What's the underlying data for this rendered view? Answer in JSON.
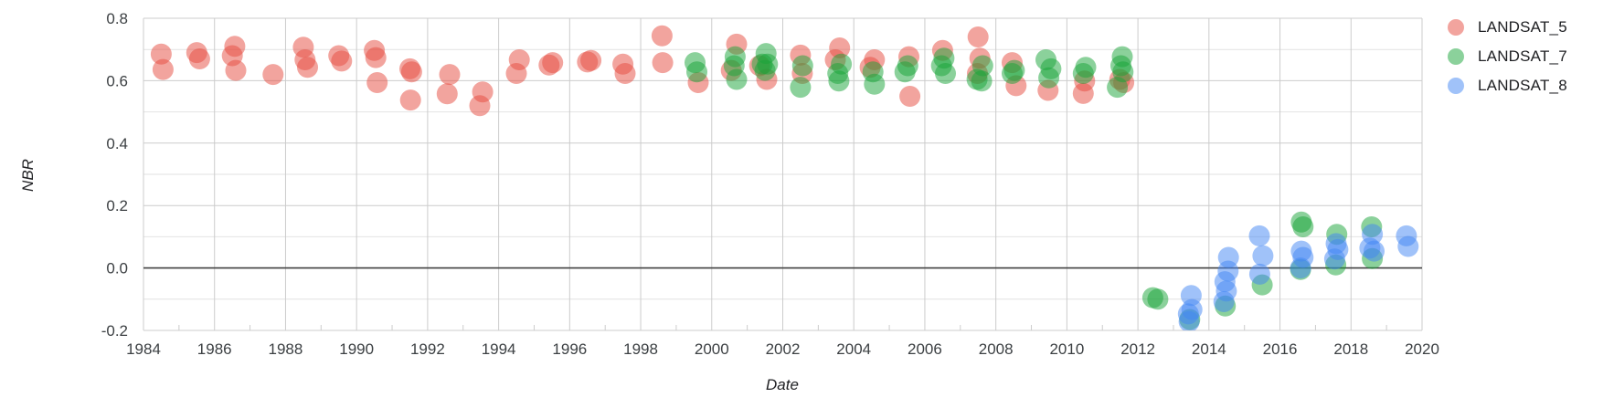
{
  "page": {
    "background": "#ffffff"
  },
  "colors": {
    "gridline": "#cccccc",
    "minor_gridline": "#e2e2e2",
    "baseline": "#424242",
    "tick_label": "#3c4043",
    "axis_title": "#202124"
  },
  "chart_data": {
    "type": "scatter",
    "title": "",
    "xlabel": "Date",
    "ylabel": "NBR",
    "xlim": [
      1984,
      2020
    ],
    "ylim": [
      -0.2,
      0.8
    ],
    "grid": true,
    "legend_position": "right",
    "x_ticks": [
      {
        "value": 1984,
        "label": "1984"
      },
      {
        "value": 1986,
        "label": "1986"
      },
      {
        "value": 1988,
        "label": "1988"
      },
      {
        "value": 1990,
        "label": "1990"
      },
      {
        "value": 1992,
        "label": "1992"
      },
      {
        "value": 1994,
        "label": "1994"
      },
      {
        "value": 1996,
        "label": "1996"
      },
      {
        "value": 1998,
        "label": "1998"
      },
      {
        "value": 2000,
        "label": "2000"
      },
      {
        "value": 2002,
        "label": "2002"
      },
      {
        "value": 2004,
        "label": "2004"
      },
      {
        "value": 2006,
        "label": "2006"
      },
      {
        "value": 2008,
        "label": "2008"
      },
      {
        "value": 2010,
        "label": "2010"
      },
      {
        "value": 2012,
        "label": "2012"
      },
      {
        "value": 2014,
        "label": "2014"
      },
      {
        "value": 2016,
        "label": "2016"
      },
      {
        "value": 2018,
        "label": "2018"
      },
      {
        "value": 2020,
        "label": "2020"
      }
    ],
    "x_minor_ticks": [
      1985,
      1987,
      1989,
      1991,
      1993,
      1995,
      1997,
      1999,
      2001,
      2003,
      2005,
      2007,
      2009,
      2011,
      2013,
      2015,
      2017,
      2019
    ],
    "y_ticks": [
      {
        "value": 0.8,
        "label": "0.8"
      },
      {
        "value": 0.6,
        "label": "0.6"
      },
      {
        "value": 0.4,
        "label": "0.4"
      },
      {
        "value": 0.2,
        "label": "0.2"
      },
      {
        "value": 0.0,
        "label": "0.0"
      },
      {
        "value": -0.2,
        "label": "-0.2"
      }
    ],
    "y_minor_ticks": [
      0.7,
      0.5,
      0.3,
      0.1,
      -0.1
    ],
    "baseline_value": 0.0,
    "series": [
      {
        "name": "LANDSAT_5",
        "color": "#db4437",
        "fill": "rgba(230,74,61,0.5)",
        "points": [
          [
            1984.5,
            0.685
          ],
          [
            1984.55,
            0.636
          ],
          [
            1985.5,
            0.69
          ],
          [
            1985.58,
            0.67
          ],
          [
            1986.5,
            0.68
          ],
          [
            1986.57,
            0.71
          ],
          [
            1986.6,
            0.633
          ],
          [
            1987.65,
            0.62
          ],
          [
            1988.5,
            0.707
          ],
          [
            1988.55,
            0.667
          ],
          [
            1988.62,
            0.643
          ],
          [
            1989.5,
            0.68
          ],
          [
            1989.58,
            0.663
          ],
          [
            1990.5,
            0.697
          ],
          [
            1990.54,
            0.674
          ],
          [
            1990.58,
            0.594
          ],
          [
            1991.5,
            0.638
          ],
          [
            1991.55,
            0.628
          ],
          [
            1991.52,
            0.538
          ],
          [
            1992.55,
            0.558
          ],
          [
            1992.62,
            0.62
          ],
          [
            1993.47,
            0.52
          ],
          [
            1993.55,
            0.564
          ],
          [
            1994.5,
            0.623
          ],
          [
            1994.58,
            0.667
          ],
          [
            1995.42,
            0.65
          ],
          [
            1995.52,
            0.658
          ],
          [
            1996.5,
            0.66
          ],
          [
            1996.6,
            0.665
          ],
          [
            1997.5,
            0.653
          ],
          [
            1997.56,
            0.623
          ],
          [
            1998.6,
            0.744
          ],
          [
            1998.62,
            0.658
          ],
          [
            1999.62,
            0.594
          ],
          [
            2000.55,
            0.633
          ],
          [
            2000.7,
            0.717
          ],
          [
            2001.35,
            0.648
          ],
          [
            2001.55,
            0.604
          ],
          [
            2002.5,
            0.682
          ],
          [
            2002.55,
            0.623
          ],
          [
            2003.48,
            0.667
          ],
          [
            2003.6,
            0.705
          ],
          [
            2004.46,
            0.643
          ],
          [
            2004.58,
            0.667
          ],
          [
            2005.55,
            0.677
          ],
          [
            2005.58,
            0.55
          ],
          [
            2006.5,
            0.697
          ],
          [
            2007.5,
            0.74
          ],
          [
            2007.55,
            0.672
          ],
          [
            2007.48,
            0.623
          ],
          [
            2008.46,
            0.658
          ],
          [
            2008.57,
            0.584
          ],
          [
            2009.47,
            0.569
          ],
          [
            2010.46,
            0.559
          ],
          [
            2010.5,
            0.599
          ],
          [
            2011.49,
            0.604
          ],
          [
            2011.6,
            0.594
          ]
        ]
      },
      {
        "name": "LANDSAT_7",
        "color": "#18a437",
        "fill": "rgba(24,164,55,0.5)",
        "points": [
          [
            1999.53,
            0.658
          ],
          [
            1999.58,
            0.628
          ],
          [
            2000.66,
            0.677
          ],
          [
            2000.63,
            0.648
          ],
          [
            2000.7,
            0.604
          ],
          [
            2001.42,
            0.653
          ],
          [
            2001.53,
            0.687
          ],
          [
            2001.57,
            0.653
          ],
          [
            2001.5,
            0.633
          ],
          [
            2002.56,
            0.648
          ],
          [
            2002.5,
            0.579
          ],
          [
            2003.65,
            0.653
          ],
          [
            2003.55,
            0.623
          ],
          [
            2003.58,
            0.599
          ],
          [
            2004.54,
            0.628
          ],
          [
            2004.58,
            0.589
          ],
          [
            2005.52,
            0.648
          ],
          [
            2005.44,
            0.628
          ],
          [
            2006.54,
            0.672
          ],
          [
            2006.47,
            0.648
          ],
          [
            2006.58,
            0.623
          ],
          [
            2007.47,
            0.604
          ],
          [
            2007.63,
            0.648
          ],
          [
            2007.6,
            0.599
          ],
          [
            2008.52,
            0.633
          ],
          [
            2008.46,
            0.623
          ],
          [
            2009.41,
            0.667
          ],
          [
            2009.55,
            0.638
          ],
          [
            2009.49,
            0.609
          ],
          [
            2010.53,
            0.643
          ],
          [
            2010.46,
            0.623
          ],
          [
            2011.56,
            0.677
          ],
          [
            2011.52,
            0.648
          ],
          [
            2011.58,
            0.628
          ],
          [
            2011.42,
            0.579
          ],
          [
            2012.42,
            -0.095
          ],
          [
            2012.56,
            -0.1
          ],
          [
            2013.46,
            -0.165
          ],
          [
            2014.46,
            -0.122
          ],
          [
            2015.5,
            -0.054
          ],
          [
            2016.6,
            0.147
          ],
          [
            2016.65,
            0.132
          ],
          [
            2016.58,
            -0.005
          ],
          [
            2017.6,
            0.108
          ],
          [
            2017.57,
            0.01
          ],
          [
            2018.58,
            0.132
          ],
          [
            2018.6,
            0.03
          ]
        ]
      },
      {
        "name": "LANDSAT_8",
        "color": "#4285f4",
        "fill": "rgba(66,133,244,0.5)",
        "points": [
          [
            2013.5,
            -0.088
          ],
          [
            2013.52,
            -0.133
          ],
          [
            2013.42,
            -0.147
          ],
          [
            2013.44,
            -0.172
          ],
          [
            2014.55,
            0.034
          ],
          [
            2014.54,
            -0.01
          ],
          [
            2014.45,
            -0.044
          ],
          [
            2014.49,
            -0.074
          ],
          [
            2014.42,
            -0.108
          ],
          [
            2015.42,
            0.103
          ],
          [
            2015.52,
            0.039
          ],
          [
            2015.43,
            -0.02
          ],
          [
            2016.6,
            0.054
          ],
          [
            2016.65,
            0.034
          ],
          [
            2016.58,
            0.0
          ],
          [
            2017.58,
            0.078
          ],
          [
            2017.63,
            0.059
          ],
          [
            2017.54,
            0.029
          ],
          [
            2018.6,
            0.108
          ],
          [
            2018.53,
            0.064
          ],
          [
            2018.65,
            0.054
          ],
          [
            2019.56,
            0.103
          ],
          [
            2019.61,
            0.069
          ]
        ]
      }
    ]
  }
}
